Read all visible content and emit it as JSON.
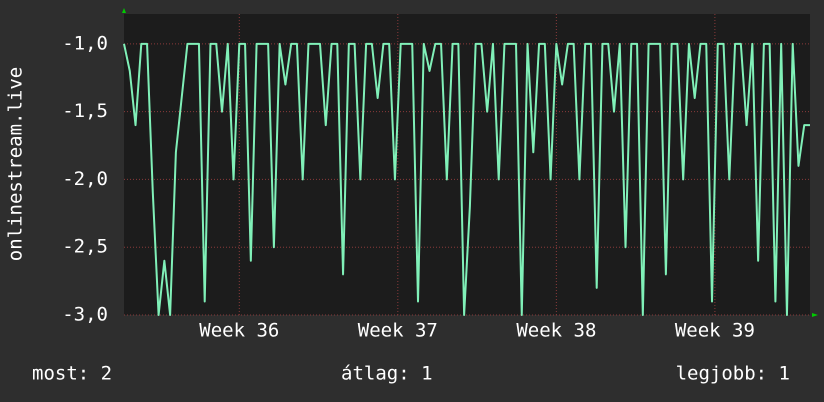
{
  "chart_data": {
    "type": "line",
    "ylabel": "onlinestream.live",
    "color": "#80f0b8",
    "values": [
      -1,
      -1.2,
      -1.6,
      -1,
      -1,
      -2.1,
      -3,
      -2.6,
      -3,
      -1.8,
      -1.4,
      -1,
      -1,
      -1,
      -2.9,
      -1,
      -1,
      -1.5,
      -1,
      -2,
      -1,
      -1,
      -2.6,
      -1,
      -1,
      -1,
      -2.5,
      -1,
      -1.3,
      -1,
      -1,
      -2,
      -1,
      -1,
      -1,
      -1.6,
      -1,
      -1,
      -2.7,
      -1,
      -1,
      -2,
      -1,
      -1,
      -1.4,
      -1,
      -1,
      -2,
      -1,
      -1,
      -1,
      -2.9,
      -1,
      -1.2,
      -1,
      -1,
      -2,
      -1,
      -1,
      -3,
      -2.2,
      -1,
      -1,
      -1.5,
      -1,
      -2,
      -1,
      -1,
      -1,
      -3,
      -1,
      -1.8,
      -1,
      -1,
      -2,
      -1,
      -1.3,
      -1,
      -1,
      -2,
      -1,
      -1,
      -2.8,
      -1,
      -1,
      -1.5,
      -1,
      -2.5,
      -1,
      -1,
      -3,
      -1,
      -1,
      -1,
      -2.7,
      -1,
      -1,
      -2,
      -1,
      -1.4,
      -1,
      -1,
      -2.9,
      -1,
      -1,
      -2,
      -1,
      -1,
      -1.6,
      -1,
      -2.6,
      -1,
      -1,
      -2.9,
      -1,
      -3,
      -1,
      -1.9,
      -1.6,
      -1.6
    ],
    "xlim": [
      0,
      119
    ],
    "xticks": [
      {
        "value": 20,
        "label": "Week 36"
      },
      {
        "value": 47.5,
        "label": "Week 37"
      },
      {
        "value": 75,
        "label": "Week 38"
      },
      {
        "value": 102.5,
        "label": "Week 39"
      }
    ],
    "ylim": [
      -3,
      -0.78
    ],
    "yticks": [
      {
        "value": -3,
        "label": "-3,0"
      },
      {
        "value": -2.5,
        "label": "-2,5"
      },
      {
        "value": -2,
        "label": "-2,0"
      },
      {
        "value": -1.5,
        "label": "-1,5"
      },
      {
        "value": -1,
        "label": "-1,0"
      }
    ],
    "grid": true,
    "footer": [
      "most: 2",
      "átlag: 1",
      "legjobb: 1"
    ]
  }
}
